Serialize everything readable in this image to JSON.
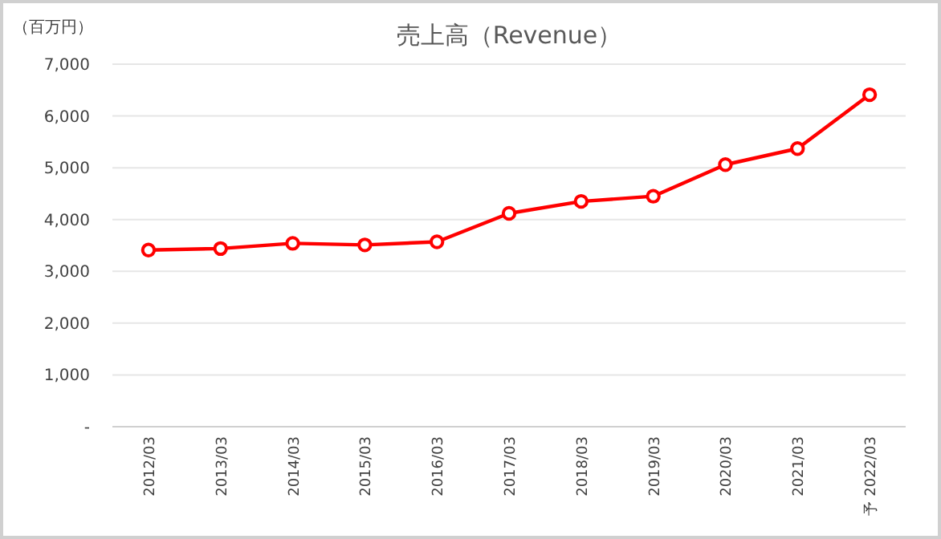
{
  "chart_data": {
    "type": "line",
    "title": "売上高（Revenue）",
    "ylabel": "（百万円）",
    "categories": [
      "2012/03",
      "2013/03",
      "2014/03",
      "2015/03",
      "2016/03",
      "2017/03",
      "2018/03",
      "2019/03",
      "2020/03",
      "2021/03",
      "予 2022/03"
    ],
    "series": [
      {
        "color": "#ff0000",
        "values": [
          3410,
          3440,
          3540,
          3510,
          3570,
          4120,
          4350,
          4450,
          5060,
          5370,
          6410
        ]
      }
    ],
    "ylim": [
      0,
      7000
    ],
    "yticks": [
      {
        "value": 0,
        "label": "-"
      },
      {
        "value": 1000,
        "label": "1,000"
      },
      {
        "value": 2000,
        "label": "2,000"
      },
      {
        "value": 3000,
        "label": "3,000"
      },
      {
        "value": 4000,
        "label": "4,000"
      },
      {
        "value": 5000,
        "label": "5,000"
      },
      {
        "value": 6000,
        "label": "6,000"
      },
      {
        "value": 7000,
        "label": "7,000"
      }
    ],
    "grid": "y",
    "marker": "circle",
    "line_style": "solid"
  }
}
